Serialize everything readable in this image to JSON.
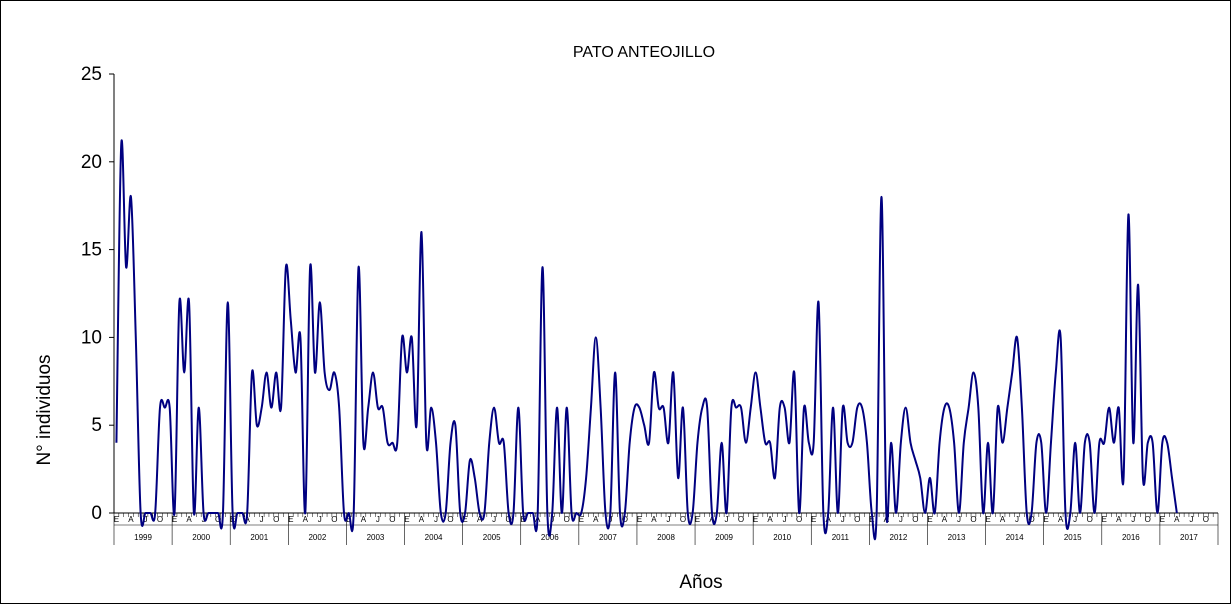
{
  "chart_data": {
    "type": "line",
    "title": "PATO ANTEOJILLO",
    "ylabel": "N° individuos",
    "xlabel": "Años",
    "ylim": [
      0,
      25
    ],
    "yticks": [
      0,
      5,
      10,
      15,
      20,
      25
    ],
    "month_tick_labels": [
      "E",
      "A",
      "J",
      "O"
    ],
    "years": [
      "1999",
      "2000",
      "2001",
      "2002",
      "2003",
      "2004",
      "2005",
      "2006",
      "2007",
      "2008",
      "2009",
      "2010",
      "2011",
      "2012",
      "2013",
      "2014",
      "2015",
      "2016",
      "2017"
    ],
    "series": [
      {
        "color": "#000080",
        "values": [
          4,
          21,
          14,
          18,
          10,
          0,
          0,
          0,
          0,
          6,
          6,
          6,
          0,
          12,
          8,
          12,
          0,
          6,
          0,
          0,
          0,
          0,
          0,
          12,
          0,
          0,
          0,
          0,
          8,
          5,
          6,
          8,
          6,
          8,
          6,
          14,
          11,
          8,
          10,
          0,
          14,
          8,
          12,
          8,
          7,
          8,
          6,
          0,
          0,
          0,
          14,
          4,
          6,
          8,
          6,
          6,
          4,
          4,
          4,
          10,
          8,
          10,
          5,
          16,
          4,
          6,
          4,
          0,
          0,
          4,
          5,
          0,
          0,
          3,
          2,
          0,
          0,
          4,
          6,
          4,
          4,
          0,
          0,
          6,
          0,
          0,
          0,
          0,
          14,
          0,
          0,
          6,
          0,
          6,
          0,
          0,
          0,
          2,
          6,
          10,
          6,
          0,
          0,
          8,
          0,
          0,
          4,
          6,
          6,
          5,
          4,
          8,
          6,
          6,
          4,
          8,
          2,
          6,
          0,
          0,
          4,
          6,
          6,
          0,
          0,
          4,
          0,
          6,
          6,
          6,
          4,
          6,
          8,
          6,
          4,
          4,
          2,
          6,
          6,
          4,
          8,
          0,
          6,
          4,
          4,
          12,
          0,
          0,
          6,
          0,
          6,
          4,
          4,
          6,
          6,
          4,
          0,
          0,
          18,
          0,
          4,
          0,
          4,
          6,
          4,
          3,
          2,
          0,
          2,
          0,
          4,
          6,
          6,
          4,
          0,
          4,
          6,
          8,
          6,
          0,
          4,
          0,
          6,
          4,
          6,
          8,
          10,
          6,
          0,
          0,
          4,
          4,
          0,
          4,
          8,
          10,
          0,
          0,
          4,
          0,
          4,
          4,
          0,
          4,
          4,
          6,
          4,
          6,
          2,
          17,
          4,
          13,
          2,
          4,
          4,
          0,
          4,
          4,
          2,
          0
        ]
      }
    ]
  }
}
